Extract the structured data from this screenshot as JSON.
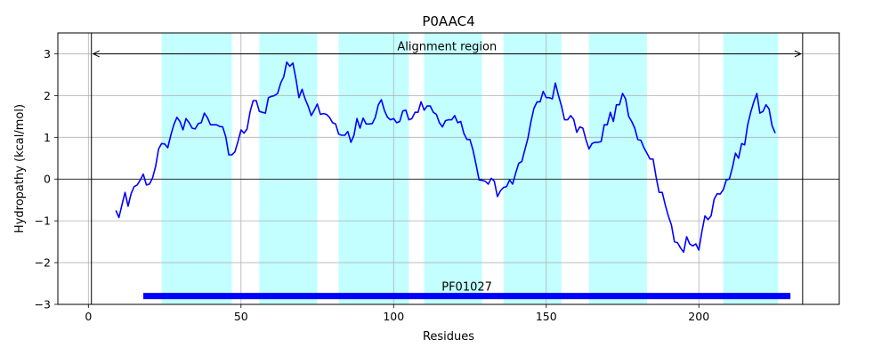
{
  "chart_data": {
    "type": "line",
    "title": "P0AAC4",
    "xlabel": "Residues",
    "ylabel": "Hydropathy (kcal/mol)",
    "xlim": [
      -10,
      246
    ],
    "ylim": [
      -3,
      3.5
    ],
    "xticks": [
      0,
      50,
      100,
      150,
      200
    ],
    "yticks": [
      -3,
      -2,
      -1,
      0,
      1,
      2,
      3
    ],
    "xtick_labels": [
      "0",
      "50",
      "100",
      "150",
      "200"
    ],
    "ytick_labels": [
      "−3",
      "−2",
      "−1",
      "0",
      "1",
      "2",
      "3"
    ],
    "grid": true,
    "series_color": "#0000ff",
    "band_color": "#c3ffff",
    "domain_color": "#0000ff",
    "shaded_regions": [
      [
        24,
        47
      ],
      [
        56,
        75
      ],
      [
        82,
        105
      ],
      [
        110,
        129
      ],
      [
        136,
        155
      ],
      [
        164,
        183
      ],
      [
        208,
        226
      ]
    ],
    "vertical_lines": [
      1,
      234
    ],
    "alignment": {
      "label": "Alignment region",
      "start": 1,
      "end": 234,
      "y": 3
    },
    "domain": {
      "label": "PF01027",
      "start": 18,
      "end": 230,
      "y": -2.8
    },
    "series": [
      {
        "x": [
          9,
          10,
          11,
          12,
          13,
          14,
          15,
          16,
          17,
          18,
          19,
          20,
          21,
          22,
          23,
          24,
          25,
          26,
          27,
          28,
          29,
          30,
          31,
          32,
          33,
          34,
          35,
          36,
          37,
          38,
          39,
          40,
          41,
          42,
          43,
          44,
          45,
          46,
          47,
          48,
          49,
          50,
          51,
          52,
          53,
          54,
          55,
          56,
          57,
          58,
          59,
          60,
          61,
          62,
          63,
          64,
          65,
          66,
          67,
          68,
          69,
          70,
          71,
          72,
          73,
          74,
          75,
          76,
          77,
          78,
          79,
          80,
          81,
          82,
          83,
          84,
          85,
          86,
          87,
          88,
          89,
          90,
          91,
          92,
          93,
          94,
          95,
          96,
          97,
          98,
          99,
          100,
          101,
          102,
          103,
          104,
          105,
          106,
          107,
          108,
          109,
          110,
          111,
          112,
          113,
          114,
          115,
          116,
          117,
          118,
          119,
          120,
          121,
          122,
          123,
          124,
          125,
          126,
          127,
          128,
          129,
          130,
          131,
          132,
          133,
          134,
          135,
          136,
          137,
          138,
          139,
          140,
          141,
          142,
          143,
          144,
          145,
          146,
          147,
          148,
          149,
          150,
          151,
          152,
          153,
          154,
          155,
          156,
          157,
          158,
          159,
          160,
          161,
          162,
          163,
          164,
          165,
          166,
          167,
          168,
          169,
          170,
          171,
          172,
          173,
          174,
          175,
          176,
          177,
          178,
          179,
          180,
          181,
          182,
          183,
          184,
          185,
          186,
          187,
          188,
          189,
          190,
          191,
          192,
          193,
          194,
          195,
          196,
          197,
          198,
          199,
          200,
          201,
          202,
          203,
          204,
          205,
          206,
          207,
          208,
          209,
          210,
          211,
          212,
          213,
          214,
          215,
          216,
          217,
          218,
          219,
          220,
          221,
          222,
          223,
          224,
          225
        ],
        "values": [
          -0.75,
          -0.92,
          -0.62,
          -0.32,
          -0.65,
          -0.35,
          -0.18,
          -0.14,
          -0.02,
          0.12,
          -0.14,
          -0.12,
          0.02,
          0.3,
          0.72,
          0.85,
          0.84,
          0.75,
          1.05,
          1.3,
          1.48,
          1.38,
          1.18,
          1.45,
          1.35,
          1.22,
          1.2,
          1.33,
          1.35,
          1.58,
          1.47,
          1.3,
          1.3,
          1.3,
          1.26,
          1.25,
          1.02,
          0.58,
          0.58,
          0.65,
          0.9,
          1.18,
          1.1,
          1.2,
          1.62,
          1.88,
          1.88,
          1.62,
          1.6,
          1.58,
          1.95,
          1.98,
          2.0,
          2.05,
          2.3,
          2.45,
          2.8,
          2.7,
          2.78,
          2.4,
          1.95,
          2.15,
          1.92,
          1.75,
          1.52,
          1.65,
          1.8,
          1.55,
          1.57,
          1.55,
          1.48,
          1.35,
          1.32,
          1.08,
          1.05,
          1.05,
          1.14,
          0.88,
          1.05,
          1.45,
          1.22,
          1.46,
          1.32,
          1.32,
          1.33,
          1.48,
          1.78,
          1.9,
          1.64,
          1.48,
          1.42,
          1.45,
          1.35,
          1.38,
          1.63,
          1.65,
          1.42,
          1.45,
          1.6,
          1.6,
          1.85,
          1.65,
          1.75,
          1.75,
          1.6,
          1.55,
          1.35,
          1.25,
          1.4,
          1.42,
          1.42,
          1.52,
          1.35,
          1.38,
          1.1,
          0.95,
          0.95,
          0.7,
          0.35,
          -0.02,
          -0.03,
          -0.05,
          -0.12,
          0.02,
          -0.05,
          -0.42,
          -0.28,
          -0.2,
          -0.18,
          -0.02,
          -0.12,
          0.15,
          0.38,
          0.42,
          0.7,
          0.98,
          1.38,
          1.7,
          1.85,
          1.85,
          2.1,
          1.95,
          1.95,
          1.92,
          2.3,
          2.0,
          1.75,
          1.42,
          1.42,
          1.52,
          1.43,
          1.12,
          1.25,
          1.22,
          0.95,
          0.72,
          0.85,
          0.88,
          0.88,
          0.9,
          1.3,
          1.3,
          1.6,
          1.38,
          1.78,
          1.78,
          2.05,
          1.92,
          1.5,
          1.38,
          1.22,
          0.95,
          0.93,
          0.75,
          0.62,
          0.48,
          0.48,
          0.05,
          -0.32,
          -0.32,
          -0.62,
          -0.88,
          -1.1,
          -1.5,
          -1.52,
          -1.65,
          -1.75,
          -1.38,
          -1.55,
          -1.6,
          -1.55,
          -1.7,
          -1.25,
          -0.88,
          -0.97,
          -0.88,
          -0.48,
          -0.35,
          -0.36,
          -0.25,
          -0.02,
          0.0,
          0.28,
          0.62,
          0.5,
          0.85,
          0.82,
          1.3,
          1.6,
          1.85,
          2.05,
          1.58,
          1.62,
          1.78,
          1.68,
          1.28,
          1.1
        ]
      }
    ]
  }
}
